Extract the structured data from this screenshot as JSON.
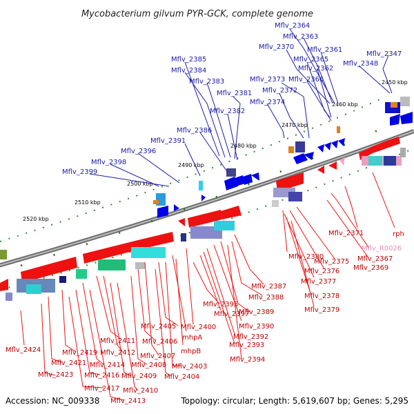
{
  "title": "Mycobacterium gilvum PYR-GCK, complete genome",
  "footer": {
    "accession": "Accession: NC_009338",
    "summary": "Topology: circular; Length: 5,619,607 bp; Genes: 5,295"
  },
  "kbp_labels": [
    "2450 kbp",
    "2460 kbp",
    "2470 kbp",
    "2480 kbp",
    "2490 kbp",
    "2500 kbp",
    "2510 kbp",
    "2520 kbp"
  ],
  "top_labels": [
    "Mflv_2364",
    "Mflv_2363",
    "Mflv_2370",
    "Mflv_2361",
    "Mflv_2347",
    "Mflv_2365",
    "Mflv_2385",
    "Mflv_2348",
    "Mflv_2362",
    "Mflv_2384",
    "Mflv_2373",
    "Mflv_2366",
    "Mflv_2383",
    "Mflv_2372",
    "Mflv_2381",
    "Mflv_2374",
    "Mflv_2382",
    "Mflv_2386",
    "Mflv_2391",
    "Mflv_2396",
    "Mflv_2398",
    "Mflv_2399"
  ],
  "bottom_labels": [
    "rph",
    "Mflv_2371",
    "Mflv_R0026",
    "Mflv_2367",
    "Mflv_2369",
    "Mflv_2380",
    "Mflv_2375",
    "Mflv_2376",
    "Mflv_2377",
    "Mflv_2387",
    "Mflv_2378",
    "Mflv_2388",
    "Mflv_2379",
    "Mflv_2395",
    "Mflv_2389",
    "Mflv_2397",
    "Mflv_2390",
    "Mflv_2405",
    "Mflv_2400",
    "mhpA",
    "Mflv_2392",
    "Mflv_2393",
    "Mflv_2411",
    "Mflv_2406",
    "Mflv_2424",
    "Mflv_2419",
    "Mflv_2412",
    "mhpB",
    "Mflv_2407",
    "Mflv_2394",
    "Mflv_2421",
    "Mflv_2414",
    "Mflv_2408",
    "Mflv_2403",
    "Mflv_2423",
    "Mflv_2416",
    "Mflv_2409",
    "Mflv_2404",
    "Mflv_2417",
    "Mflv_2410",
    "Mflv_2413"
  ],
  "colors": {
    "forward_gene": "#0000e6",
    "reverse_gene": "#ee1111",
    "rna_gene": "#f2a6c8",
    "top_label": "#1a1aa6",
    "bottom_label": "#c00000",
    "backbone": "#707070",
    "tick": "#1a7a1a"
  }
}
